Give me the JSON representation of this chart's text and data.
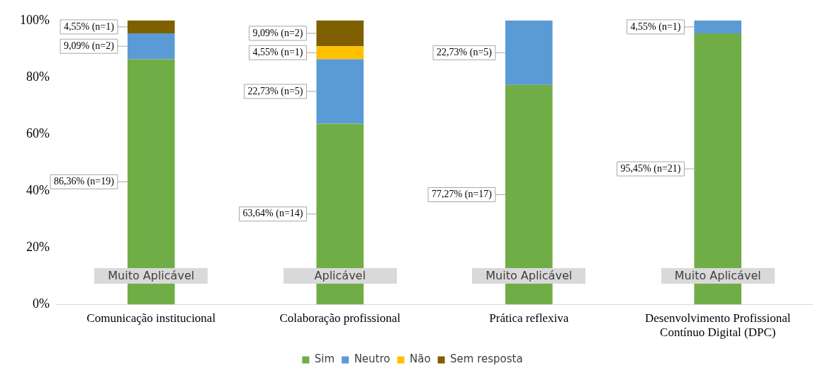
{
  "chart_data": {
    "type": "bar",
    "stacked": true,
    "categories": [
      "Comunicação institucional",
      "Colaboração profissional",
      "Prática reflexiva",
      "Desenvolvimento Profissional Contínuo Digital (DPC)"
    ],
    "series": [
      {
        "name": "Sim",
        "color": "#70ad47",
        "values": [
          86.36,
          63.64,
          77.27,
          95.45
        ],
        "value_labels": [
          "86,36% (n=19)",
          "63,64% (n=14)",
          "77,27% (n=17)",
          "95,45% (n=21)"
        ]
      },
      {
        "name": "Neutro",
        "color": "#5b9bd5",
        "values": [
          9.09,
          22.73,
          22.73,
          4.55
        ],
        "value_labels": [
          "9,09% (n=2)",
          "22,73% (n=5)",
          "22,73% (n=5)",
          "4,55% (n=1)"
        ]
      },
      {
        "name": "Não",
        "color": "#ffc000",
        "values": [
          null,
          4.55,
          null,
          null
        ],
        "value_labels": [
          null,
          "4,55% (n=1)",
          null,
          null
        ]
      },
      {
        "name": "Sem resposta",
        "color": "#7f6000",
        "values": [
          4.55,
          9.09,
          null,
          null
        ],
        "value_labels": [
          "4,55% (n=1)",
          "9,09% (n=2)",
          null,
          null
        ]
      }
    ],
    "ylim": [
      0,
      100
    ],
    "yticks": [
      {
        "value": 0,
        "label": "0%"
      },
      {
        "value": 20,
        "label": "20%"
      },
      {
        "value": 40,
        "label": "40%"
      },
      {
        "value": 60,
        "label": "60%"
      },
      {
        "value": 80,
        "label": "80%"
      },
      {
        "value": 100,
        "label": "100%"
      }
    ],
    "annotations": [
      "Muito Aplicável",
      "Aplicável",
      "Muito Aplicável",
      "Muito Aplicável"
    ],
    "grid": false,
    "legend": "bottom"
  }
}
